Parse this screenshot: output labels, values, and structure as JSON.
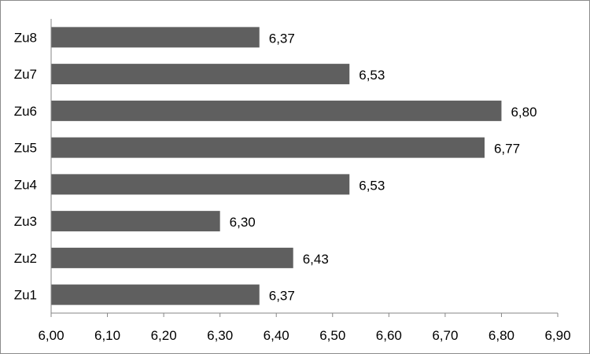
{
  "chart_data": {
    "type": "bar",
    "orientation": "horizontal",
    "title": "",
    "xlabel": "",
    "ylabel": "",
    "categories": [
      "Zu1",
      "Zu2",
      "Zu3",
      "Zu4",
      "Zu5",
      "Zu6",
      "Zu7",
      "Zu8"
    ],
    "values": [
      6.37,
      6.43,
      6.3,
      6.53,
      6.77,
      6.8,
      6.53,
      6.37
    ],
    "value_labels": [
      "6,37",
      "6,43",
      "6,30",
      "6,53",
      "6,77",
      "6,80",
      "6,53",
      "6,37"
    ],
    "xlim": [
      6.0,
      6.9
    ],
    "x_ticks": [
      6.0,
      6.1,
      6.2,
      6.3,
      6.4,
      6.5,
      6.6,
      6.7,
      6.8,
      6.9
    ],
    "x_tick_labels": [
      "6,00",
      "6,10",
      "6,20",
      "6,30",
      "6,40",
      "6,50",
      "6,60",
      "6,70",
      "6,80",
      "6,90"
    ],
    "grid": false,
    "legend": "none",
    "bar_color": "#5f5f5f"
  }
}
